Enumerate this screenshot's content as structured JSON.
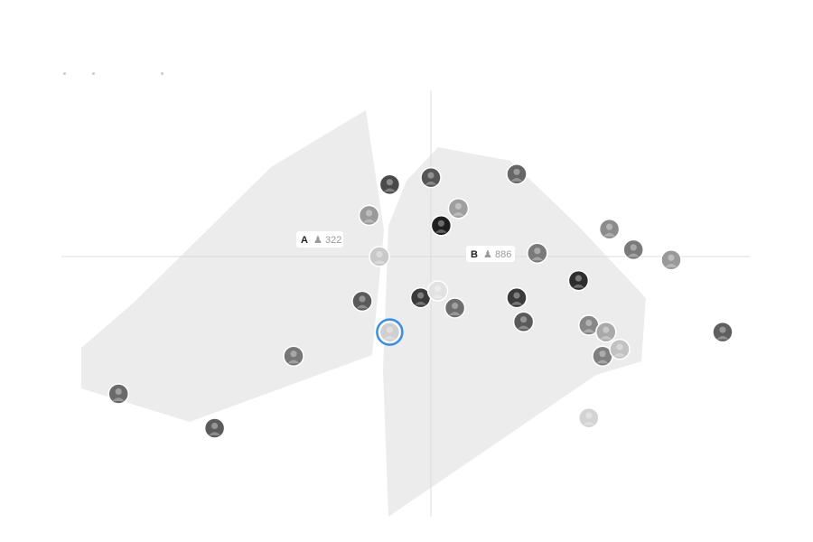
{
  "chart_data": {
    "type": "scatter",
    "axes": {
      "x_range": [
        -100,
        100
      ],
      "y_range": [
        -100,
        100
      ],
      "grid": false,
      "crosshair": true
    },
    "groups": [
      {
        "id": "A",
        "label": "A",
        "count": "322",
        "color": "#ececec"
      },
      {
        "id": "B",
        "label": "B",
        "count": "886",
        "color": "#ececec"
      }
    ],
    "selected_color": "#3d8ee0",
    "points": [
      {
        "x": -12,
        "y": 21,
        "group": "A",
        "tone": "#4a4a4a"
      },
      {
        "x": -18,
        "y": 12,
        "group": "A",
        "tone": "#9a9a9a"
      },
      {
        "x": -15,
        "y": 0,
        "group": "A",
        "tone": "#c9c9c9"
      },
      {
        "x": -20,
        "y": -13,
        "group": "A",
        "tone": "#5a5a5a"
      },
      {
        "x": -40,
        "y": -29,
        "group": "A",
        "tone": "#777777"
      },
      {
        "x": -91,
        "y": -40,
        "group": "A",
        "tone": "#6a6a6a"
      },
      {
        "x": -63,
        "y": -50,
        "group": "A",
        "tone": "#5b5b5b"
      },
      {
        "x": -12,
        "y": -22,
        "group": "A",
        "tone": "#cfcfcf",
        "selected": true
      },
      {
        "x": 0,
        "y": 23,
        "group": "B",
        "tone": "#555555"
      },
      {
        "x": 8,
        "y": 14,
        "group": "B",
        "tone": "#9f9f9f"
      },
      {
        "x": 3,
        "y": 9,
        "group": "B",
        "tone": "#1e1e1e"
      },
      {
        "x": 25,
        "y": 24,
        "group": "B",
        "tone": "#666666"
      },
      {
        "x": 31,
        "y": 1,
        "group": "B",
        "tone": "#7a7a7a"
      },
      {
        "x": 43,
        "y": -7,
        "group": "B",
        "tone": "#2e2e2e"
      },
      {
        "x": -3,
        "y": -12,
        "group": "B",
        "tone": "#3a3a3a"
      },
      {
        "x": 2,
        "y": -10,
        "group": "B",
        "tone": "#e2e2e2"
      },
      {
        "x": 7,
        "y": -15,
        "group": "B",
        "tone": "#6e6e6e"
      },
      {
        "x": 25,
        "y": -12,
        "group": "B",
        "tone": "#3b3b3b"
      },
      {
        "x": 27,
        "y": -19,
        "group": "B",
        "tone": "#5a5a5a"
      },
      {
        "x": 46,
        "y": -20,
        "group": "B",
        "tone": "#878787"
      },
      {
        "x": 51,
        "y": -22,
        "group": "B",
        "tone": "#a9a9a9"
      },
      {
        "x": 50,
        "y": -29,
        "group": "B",
        "tone": "#808080"
      },
      {
        "x": 55,
        "y": -27,
        "group": "B",
        "tone": "#c2c2c2"
      },
      {
        "x": 46,
        "y": -47,
        "group": "B",
        "tone": "#d3d3d3"
      },
      {
        "x": 52,
        "y": 8,
        "group": "B",
        "tone": "#8c8c8c"
      },
      {
        "x": 59,
        "y": 2,
        "group": "B",
        "tone": "#7a7a7a"
      },
      {
        "x": 70,
        "y": -1,
        "group": "B",
        "tone": "#999999"
      },
      {
        "x": 85,
        "y": -22,
        "group": "B",
        "tone": "#5f5f5f"
      }
    ]
  }
}
